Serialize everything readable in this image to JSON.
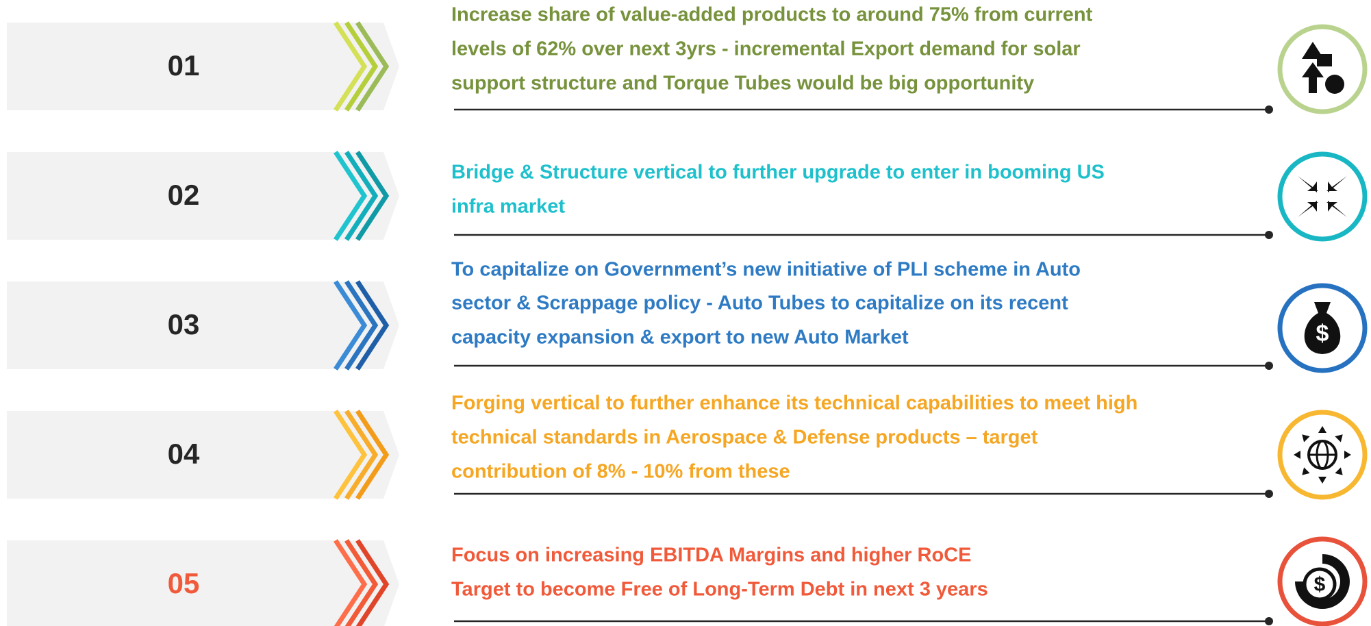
{
  "items": [
    {
      "number": "01",
      "lines": [
        "Increase share of value-added products to around 75%  from current",
        "levels of 62% over next 3yrs - incremental Export demand for solar",
        "support structure and Torque Tubes would be big opportunity"
      ]
    },
    {
      "number": "02",
      "lines": [
        "Bridge & Structure vertical to further upgrade to enter in booming US",
        "infra market"
      ]
    },
    {
      "number": "03",
      "lines": [
        "To capitalize on Government’s new initiative of PLI scheme in Auto",
        "sector & Scrappage policy - Auto Tubes to capitalize on its recent",
        "capacity expansion & export to new Auto Market"
      ]
    },
    {
      "number": "04",
      "lines": [
        "Forging vertical to further enhance its technical capabilities to meet high",
        "technical standards in Aerospace & Defense products – target",
        "contribution of 8% - 10% from these"
      ]
    },
    {
      "number": "05",
      "lines": [
        "Focus on increasing EBITDA Margins and higher RoCE",
        "Target to become Free of Long-Term Debt in next 3 years"
      ]
    }
  ]
}
